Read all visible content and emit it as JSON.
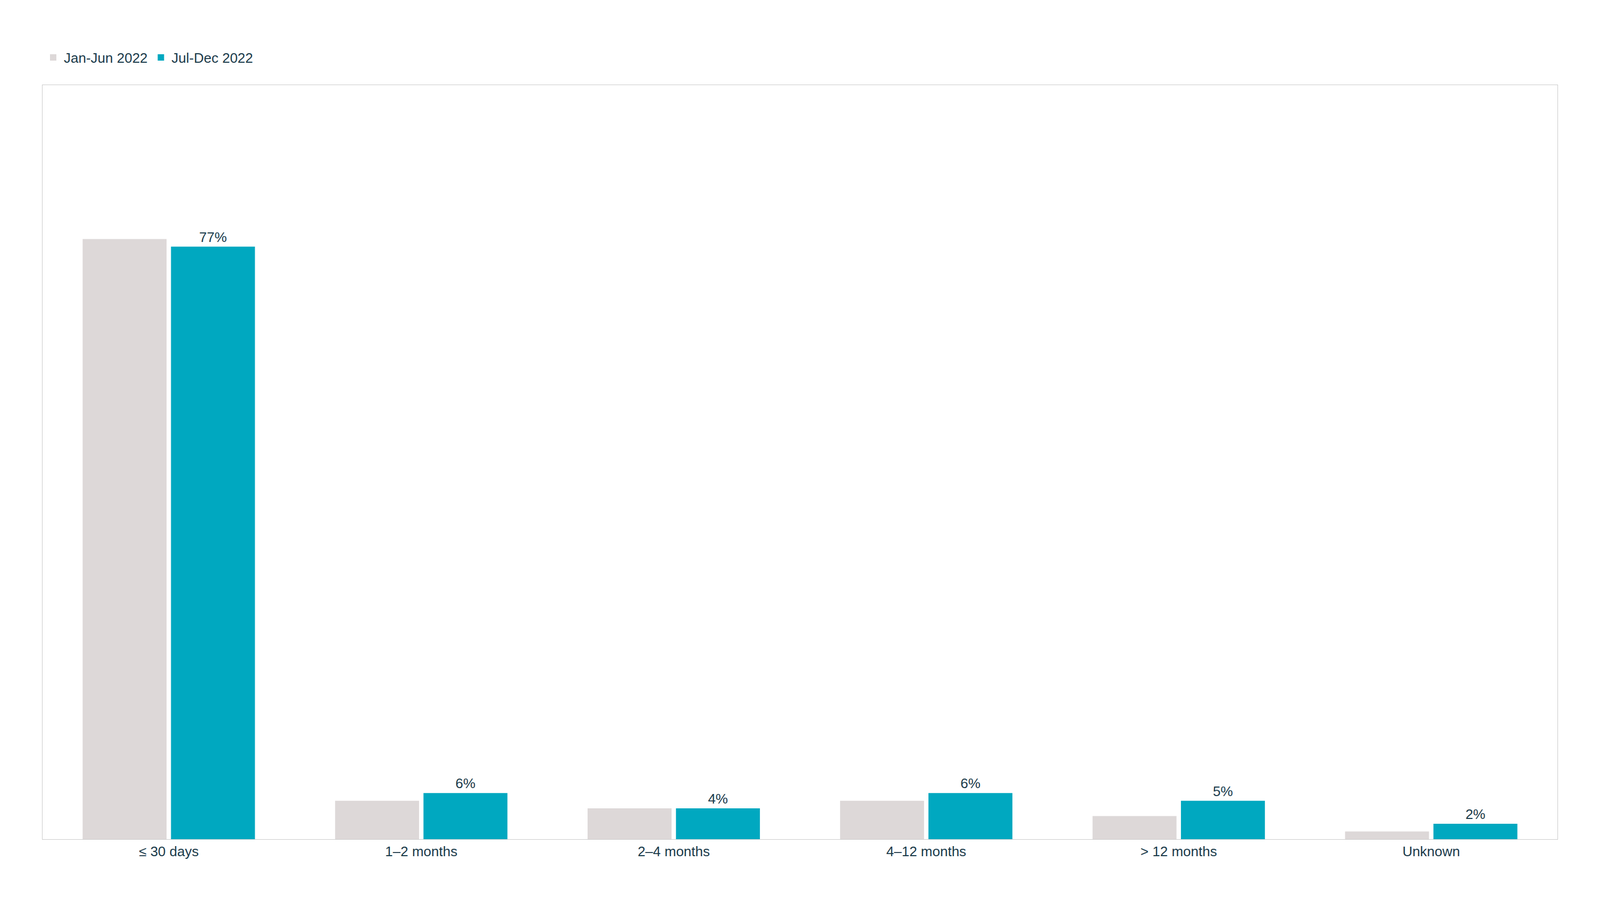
{
  "chart_data": {
    "type": "bar",
    "categories": [
      "≤ 30 days",
      "1–2 months",
      "2–4 months",
      "4–12 months",
      "> 12 months",
      "Unknown"
    ],
    "series": [
      {
        "name": "Jan-Jun 2022",
        "color": "#ddd8d8",
        "values": [
          78,
          5,
          4,
          5,
          3,
          1
        ]
      },
      {
        "name": "Jul-Dec 2022",
        "color": "#00a8c0",
        "values": [
          77,
          6,
          4,
          6,
          5,
          2
        ],
        "data_labels": true,
        "value_labels": [
          "77%",
          "6%",
          "4%",
          "6%",
          "5%",
          "2%"
        ]
      }
    ],
    "ylim": [
      0,
      98
    ],
    "tick_labels": "x",
    "grid": false,
    "legend": "upper left"
  }
}
